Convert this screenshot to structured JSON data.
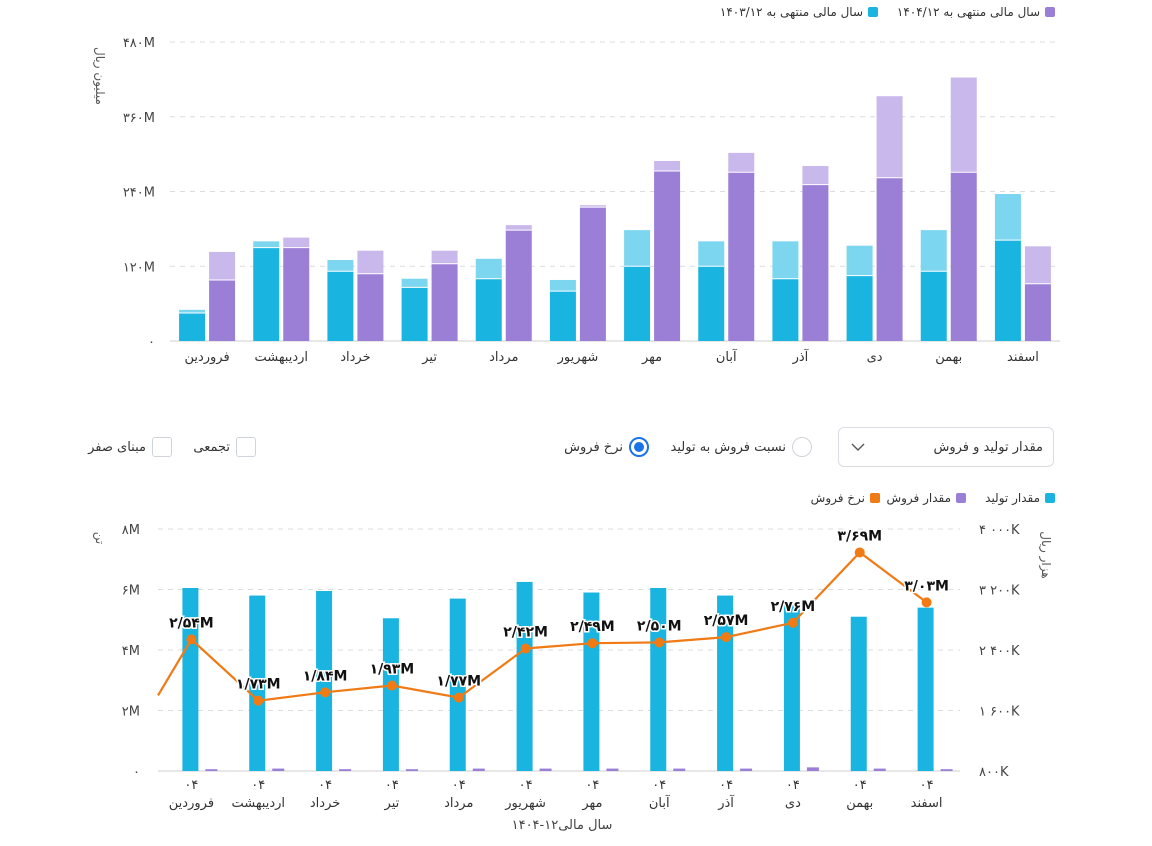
{
  "top_legend": {
    "items": [
      {
        "label": "سال مالی منتهی به ۱۴۰۴/۱۲",
        "color": "#9b7fd6"
      },
      {
        "label": "سال مالی منتهی به ۱۴۰۳/۱۲",
        "color": "#1ab4e0"
      }
    ]
  },
  "controls": {
    "select_label": "مقدار تولید و فروش",
    "radio_ratio": "نسبت فروش به تولید",
    "radio_rate": "نرخ فروش",
    "check_cumulative": "تجمعی",
    "check_zero_base": "مبنای صفر"
  },
  "bottom_legend": {
    "items": [
      {
        "label": "مقدار تولید",
        "color": "#1ab4e0"
      },
      {
        "label": "مقدار فروش",
        "color": "#9b7fd6"
      },
      {
        "label": "نرخ فروش",
        "color": "#f07a14"
      }
    ]
  },
  "chart_data": [
    {
      "type": "bar",
      "ylabel": "میلیون ریال",
      "ylim": [
        0,
        480
      ],
      "yticks": [
        {
          "v": 0,
          "label": "۰"
        },
        {
          "v": 120,
          "label": "۱۲۰M"
        },
        {
          "v": 240,
          "label": "۲۴۰M"
        },
        {
          "v": 360,
          "label": "۳۶۰M"
        },
        {
          "v": 480,
          "label": "۴۸۰M"
        }
      ],
      "grid": true,
      "legend_position": "top-right",
      "categories": [
        "فروردین",
        "اردیبهشت",
        "خرداد",
        "تیر",
        "مرداد",
        "شهریور",
        "مهر",
        "آبان",
        "آذر",
        "دی",
        "بهمن",
        "اسفند"
      ],
      "series": [
        {
          "name": "سال مالی منتهی به ۱۴۰۳/۱۲",
          "color": "#1ab4e0",
          "light_color": "#7dd6ef",
          "values": [
            45,
            150,
            112,
            86,
            100,
            80,
            120,
            120,
            100,
            105,
            112,
            162
          ],
          "totals": [
            50,
            160,
            130,
            100,
            132,
            98,
            178,
            160,
            160,
            153,
            178,
            236
          ]
        },
        {
          "name": "سال مالی منتهی به ۱۴۰۴/۱۲",
          "color": "#9b7fd6",
          "light_color": "#c9b8ec",
          "values": [
            98,
            150,
            108,
            124,
            178,
            215,
            273,
            271,
            251,
            262,
            271,
            92
          ],
          "totals": [
            143,
            166,
            145,
            145,
            186,
            218,
            289,
            302,
            281,
            393,
            423,
            152
          ]
        }
      ]
    },
    {
      "type": "bar",
      "xlabel": "سال مالی۱۲-۱۴۰۴",
      "ylabel": "تن",
      "y2label": "هزار ریال",
      "ylim": [
        0,
        8
      ],
      "yticks": [
        {
          "v": 0,
          "label": "۰"
        },
        {
          "v": 2,
          "label": "۲M"
        },
        {
          "v": 4,
          "label": "۴M"
        },
        {
          "v": 6,
          "label": "۶M"
        },
        {
          "v": 8,
          "label": "۸M"
        }
      ],
      "y2lim": [
        800,
        4000
      ],
      "y2ticks": [
        {
          "v": 800,
          "label": "۸۰۰K"
        },
        {
          "v": 1600,
          "label": "۱ ۶۰۰K"
        },
        {
          "v": 2400,
          "label": "۲ ۴۰۰K"
        },
        {
          "v": 3200,
          "label": "۳ ۲۰۰K"
        },
        {
          "v": 4000,
          "label": "۴ ۰۰۰K"
        }
      ],
      "grid": true,
      "legend_position": "top-right",
      "x_top_labels": [
        "۰۴",
        "۰۴",
        "۰۴",
        "۰۴",
        "۰۴",
        "۰۴",
        "۰۴",
        "۰۴",
        "۰۴",
        "۰۴",
        "۰۴",
        "۰۴"
      ],
      "categories": [
        "فروردین",
        "اردیبهشت",
        "خرداد",
        "تیر",
        "مرداد",
        "شهریور",
        "مهر",
        "آبان",
        "آذر",
        "دی",
        "بهمن",
        "اسفند"
      ],
      "series": [
        {
          "name": "مقدار تولید",
          "color": "#1ab4e0",
          "type": "bar",
          "values": [
            6.05,
            5.8,
            5.95,
            5.05,
            5.7,
            6.25,
            5.9,
            6.05,
            5.8,
            5.55,
            5.1,
            5.4
          ]
        },
        {
          "name": "مقدار فروش",
          "color": "#9b7fd6",
          "type": "bar",
          "values": [
            0.06,
            0.08,
            0.06,
            0.06,
            0.08,
            0.08,
            0.08,
            0.08,
            0.08,
            0.12,
            0.08,
            0.06
          ]
        },
        {
          "name": "نرخ فروش",
          "color": "#f07a14",
          "type": "line",
          "values": [
            2540,
            1730,
            1840,
            1930,
            1770,
            2420,
            2490,
            2500,
            2570,
            2760,
            3690,
            3030
          ],
          "labels": [
            "۲/۵۴M",
            "۱/۷۳M",
            "۱/۸۴M",
            "۱/۹۳M",
            "۱/۷۷M",
            "۲/۴۲M",
            "۲/۴۹M",
            "۲/۵۰M",
            "۲/۵۷M",
            "۲/۷۶M",
            "۳/۶۹M",
            "۳/۰۳M"
          ],
          "lead_in_value": 1800
        }
      ]
    }
  ]
}
